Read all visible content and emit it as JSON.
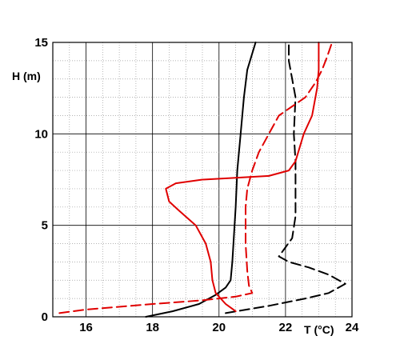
{
  "chart_data": {
    "type": "line",
    "title": "",
    "xlabel": "T (°C)",
    "ylabel": "H (m)",
    "xlim": [
      15,
      24
    ],
    "ylim": [
      0,
      15
    ],
    "x_ticks": [
      16,
      18,
      20,
      22,
      24
    ],
    "y_ticks": [
      0,
      5,
      10,
      15
    ],
    "grid": "major solid, minor dotted",
    "legend": "none",
    "series": [
      {
        "color": "#000000",
        "style": "solid",
        "points": [
          [
            17.8,
            0.0
          ],
          [
            18.6,
            0.3
          ],
          [
            19.4,
            0.7
          ],
          [
            19.9,
            1.2
          ],
          [
            20.2,
            1.6
          ],
          [
            20.35,
            2.0
          ],
          [
            20.4,
            3.0
          ],
          [
            20.45,
            4.5
          ],
          [
            20.5,
            6.0
          ],
          [
            20.55,
            8.0
          ],
          [
            20.65,
            10.0
          ],
          [
            20.75,
            12.0
          ],
          [
            20.85,
            13.5
          ],
          [
            21.1,
            15.0
          ]
        ]
      },
      {
        "color": "#000000",
        "style": "dashed",
        "points": [
          [
            20.2,
            0.2
          ],
          [
            21.5,
            0.6
          ],
          [
            22.6,
            1.0
          ],
          [
            23.3,
            1.3
          ],
          [
            23.8,
            1.8
          ],
          [
            23.3,
            2.3
          ],
          [
            22.7,
            2.7
          ],
          [
            22.1,
            3.0
          ],
          [
            21.8,
            3.3
          ],
          [
            22.0,
            3.8
          ],
          [
            22.2,
            4.3
          ],
          [
            22.3,
            5.5
          ],
          [
            22.3,
            7.0
          ],
          [
            22.3,
            8.5
          ],
          [
            22.25,
            10.0
          ],
          [
            22.3,
            12.0
          ],
          [
            22.2,
            13.0
          ],
          [
            22.1,
            14.0
          ],
          [
            22.1,
            15.0
          ]
        ]
      },
      {
        "color": "#e00000",
        "style": "solid",
        "points": [
          [
            20.5,
            0.3
          ],
          [
            20.2,
            0.7
          ],
          [
            19.9,
            1.3
          ],
          [
            19.8,
            2.0
          ],
          [
            19.75,
            3.0
          ],
          [
            19.6,
            4.0
          ],
          [
            19.3,
            5.0
          ],
          [
            18.8,
            5.8
          ],
          [
            18.5,
            6.3
          ],
          [
            18.4,
            7.0
          ],
          [
            18.7,
            7.3
          ],
          [
            19.5,
            7.5
          ],
          [
            20.5,
            7.6
          ],
          [
            21.5,
            7.7
          ],
          [
            22.1,
            8.0
          ],
          [
            22.3,
            8.5
          ],
          [
            22.55,
            10.0
          ],
          [
            22.8,
            11.0
          ],
          [
            22.95,
            12.5
          ],
          [
            23.0,
            13.5
          ],
          [
            23.0,
            15.0
          ]
        ]
      },
      {
        "color": "#e00000",
        "style": "dashed",
        "points": [
          [
            15.2,
            0.2
          ],
          [
            16.0,
            0.4
          ],
          [
            18.0,
            0.7
          ],
          [
            19.5,
            0.9
          ],
          [
            20.5,
            1.1
          ],
          [
            21.0,
            1.3
          ],
          [
            20.9,
            1.7
          ],
          [
            20.85,
            2.5
          ],
          [
            20.8,
            4.0
          ],
          [
            20.8,
            6.0
          ],
          [
            20.85,
            7.0
          ],
          [
            21.0,
            8.0
          ],
          [
            21.2,
            9.0
          ],
          [
            21.5,
            10.0
          ],
          [
            21.8,
            11.0
          ],
          [
            22.2,
            11.5
          ],
          [
            22.6,
            12.0
          ],
          [
            22.9,
            12.8
          ],
          [
            23.1,
            13.5
          ],
          [
            23.25,
            14.2
          ],
          [
            23.4,
            15.0
          ]
        ]
      }
    ]
  }
}
